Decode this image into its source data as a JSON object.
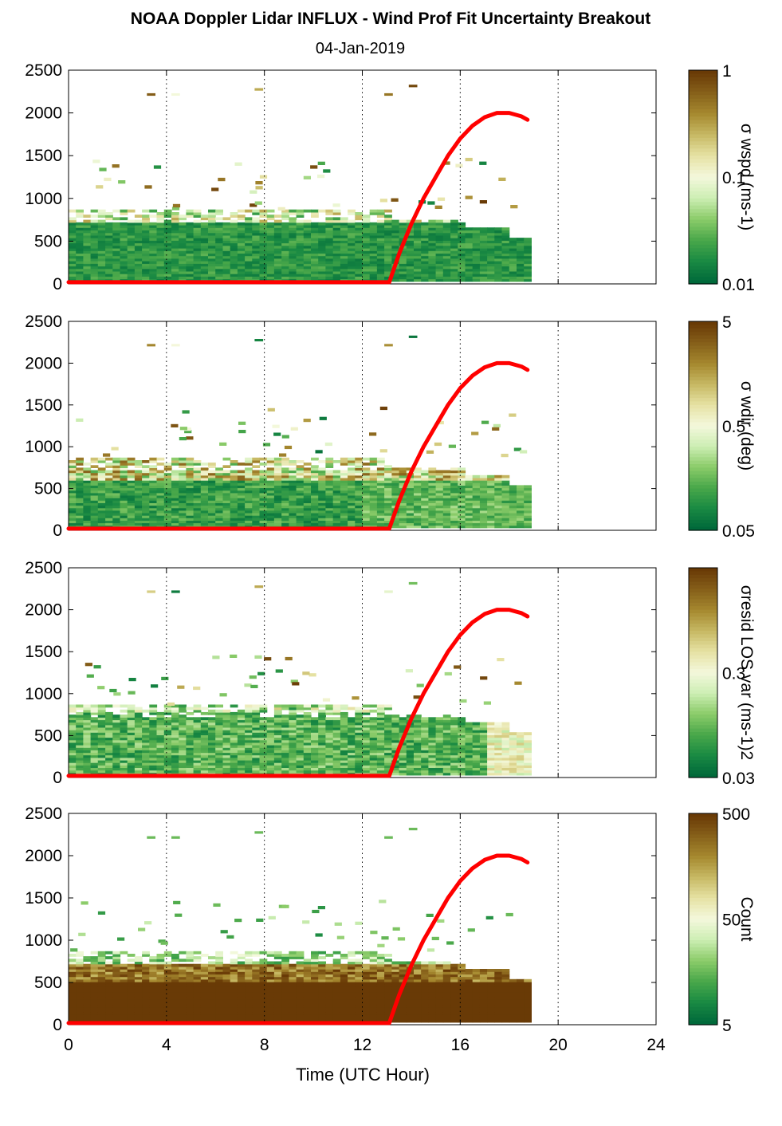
{
  "title": "NOAA Doppler Lidar INFLUX - Wind Prof Fit Uncertainty Breakout",
  "subtitle": "04-Jan-2019",
  "xlabel": "Time (UTC Hour)",
  "colors": {
    "curve": "#ff0000",
    "colormap": [
      "#00693a",
      "#1a8a43",
      "#4aa84a",
      "#8ccc6a",
      "#cdeeb4",
      "#f4f8dc",
      "#e6e2a4",
      "#c7b964",
      "#a6892f",
      "#86601a",
      "#693a06"
    ],
    "background": "#ffffff"
  },
  "chart_data": [
    {
      "type": "heatmap",
      "xlim": [
        0,
        24
      ],
      "ylim": [
        0,
        2500
      ],
      "xticks": [
        0,
        4,
        8,
        12,
        16,
        20,
        24
      ],
      "yticks": [
        0,
        500,
        1000,
        1500,
        2000,
        2500
      ],
      "vertical_grid": "dotted",
      "colorbar": {
        "label": "σ wspd (ms-1)",
        "ticks": [
          "1",
          "0.1",
          "0.01"
        ],
        "scale": "log"
      },
      "curve": {
        "color": "#ff0000",
        "x": [
          0,
          13.1,
          13.5,
          14,
          14.5,
          15,
          15.5,
          16,
          16.5,
          17,
          17.5,
          18,
          18.5,
          18.75
        ],
        "y": [
          20,
          20,
          350,
          700,
          1000,
          1250,
          1500,
          1700,
          1850,
          1950,
          2000,
          2000,
          1960,
          1920
        ]
      }
    },
    {
      "type": "heatmap",
      "xlim": [
        0,
        24
      ],
      "ylim": [
        0,
        2500
      ],
      "xticks": [
        0,
        4,
        8,
        12,
        16,
        20,
        24
      ],
      "yticks": [
        0,
        500,
        1000,
        1500,
        2000,
        2500
      ],
      "vertical_grid": "dotted",
      "colorbar": {
        "label": "σ wdir (deg)",
        "ticks": [
          "5",
          "0.5",
          "0.05"
        ],
        "scale": "log"
      },
      "curve": {
        "color": "#ff0000",
        "x": [
          0,
          13.1,
          13.5,
          14,
          14.5,
          15,
          15.5,
          16,
          16.5,
          17,
          17.5,
          18,
          18.5,
          18.75
        ],
        "y": [
          20,
          20,
          350,
          700,
          1000,
          1250,
          1500,
          1700,
          1850,
          1950,
          2000,
          2000,
          1960,
          1920
        ]
      }
    },
    {
      "type": "heatmap",
      "xlim": [
        0,
        24
      ],
      "ylim": [
        0,
        2500
      ],
      "xticks": [
        0,
        4,
        8,
        12,
        16,
        20,
        24
      ],
      "yticks": [
        0,
        500,
        1000,
        1500,
        2000,
        2500
      ],
      "vertical_grid": "dotted",
      "colorbar": {
        "label": "σresid LOS var (ms-1)2",
        "ticks": [
          "",
          "0.3",
          "0.03"
        ],
        "scale": "log"
      },
      "curve": {
        "color": "#ff0000",
        "x": [
          0,
          13.1,
          13.5,
          14,
          14.5,
          15,
          15.5,
          16,
          16.5,
          17,
          17.5,
          18,
          18.5,
          18.75
        ],
        "y": [
          20,
          20,
          350,
          700,
          1000,
          1250,
          1500,
          1700,
          1850,
          1950,
          2000,
          2000,
          1960,
          1920
        ]
      }
    },
    {
      "type": "heatmap",
      "xlim": [
        0,
        24
      ],
      "ylim": [
        0,
        2500
      ],
      "xticks": [
        0,
        4,
        8,
        12,
        16,
        20,
        24
      ],
      "yticks": [
        0,
        500,
        1000,
        1500,
        2000,
        2500
      ],
      "vertical_grid": "dotted",
      "colorbar": {
        "label": "Count",
        "ticks": [
          "500",
          "50",
          "5"
        ],
        "scale": "log"
      },
      "curve": {
        "color": "#ff0000",
        "x": [
          0,
          13.1,
          13.5,
          14,
          14.5,
          15,
          15.5,
          16,
          16.5,
          17,
          17.5,
          18,
          18.5,
          18.75
        ],
        "y": [
          20,
          20,
          350,
          700,
          1000,
          1250,
          1500,
          1700,
          1850,
          1950,
          2000,
          2000,
          1960,
          1920
        ]
      }
    }
  ]
}
